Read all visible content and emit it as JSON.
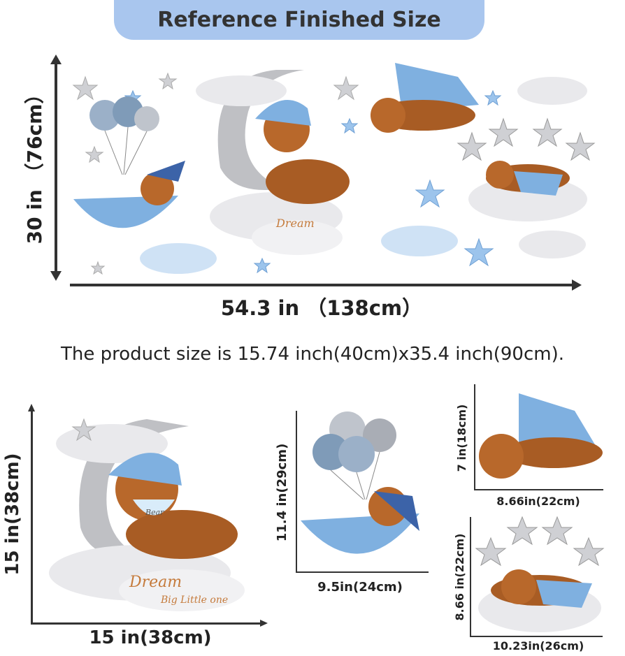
{
  "header": {
    "title": "Reference Finished Size"
  },
  "overall": {
    "width_label": "54.3 in （138cm）",
    "height_label": "30 in （76cm）"
  },
  "product_note": "The product size is 15.74 inch(40cm)x35.4 inch(90cm).",
  "stickers": {
    "moon_bear": {
      "width_label": "15 in(38cm)",
      "height_label": "15 in(38cm)",
      "bib_text": "Bear",
      "caption_line1": "Dream",
      "caption_line2": "Big Little one"
    },
    "balloon_bear": {
      "width_label": "9.5in(24cm)",
      "height_label": "11.4 in(29cm)"
    },
    "flying_bear": {
      "width_label": "8.66in(22cm)",
      "height_label": "7 in(18cm)"
    },
    "star_bear": {
      "width_label": "10.23in(26cm)",
      "height_label": "8.66 in(22cm)"
    }
  },
  "colors": {
    "pill": "#a9c6ee",
    "arrow": "#333333",
    "bear": "#b8682b",
    "blanket": "#7fb0e0",
    "cloud": "#e9e9ec",
    "star_grey": "#cfd0d4",
    "star_blue": "#9cc4ec"
  }
}
